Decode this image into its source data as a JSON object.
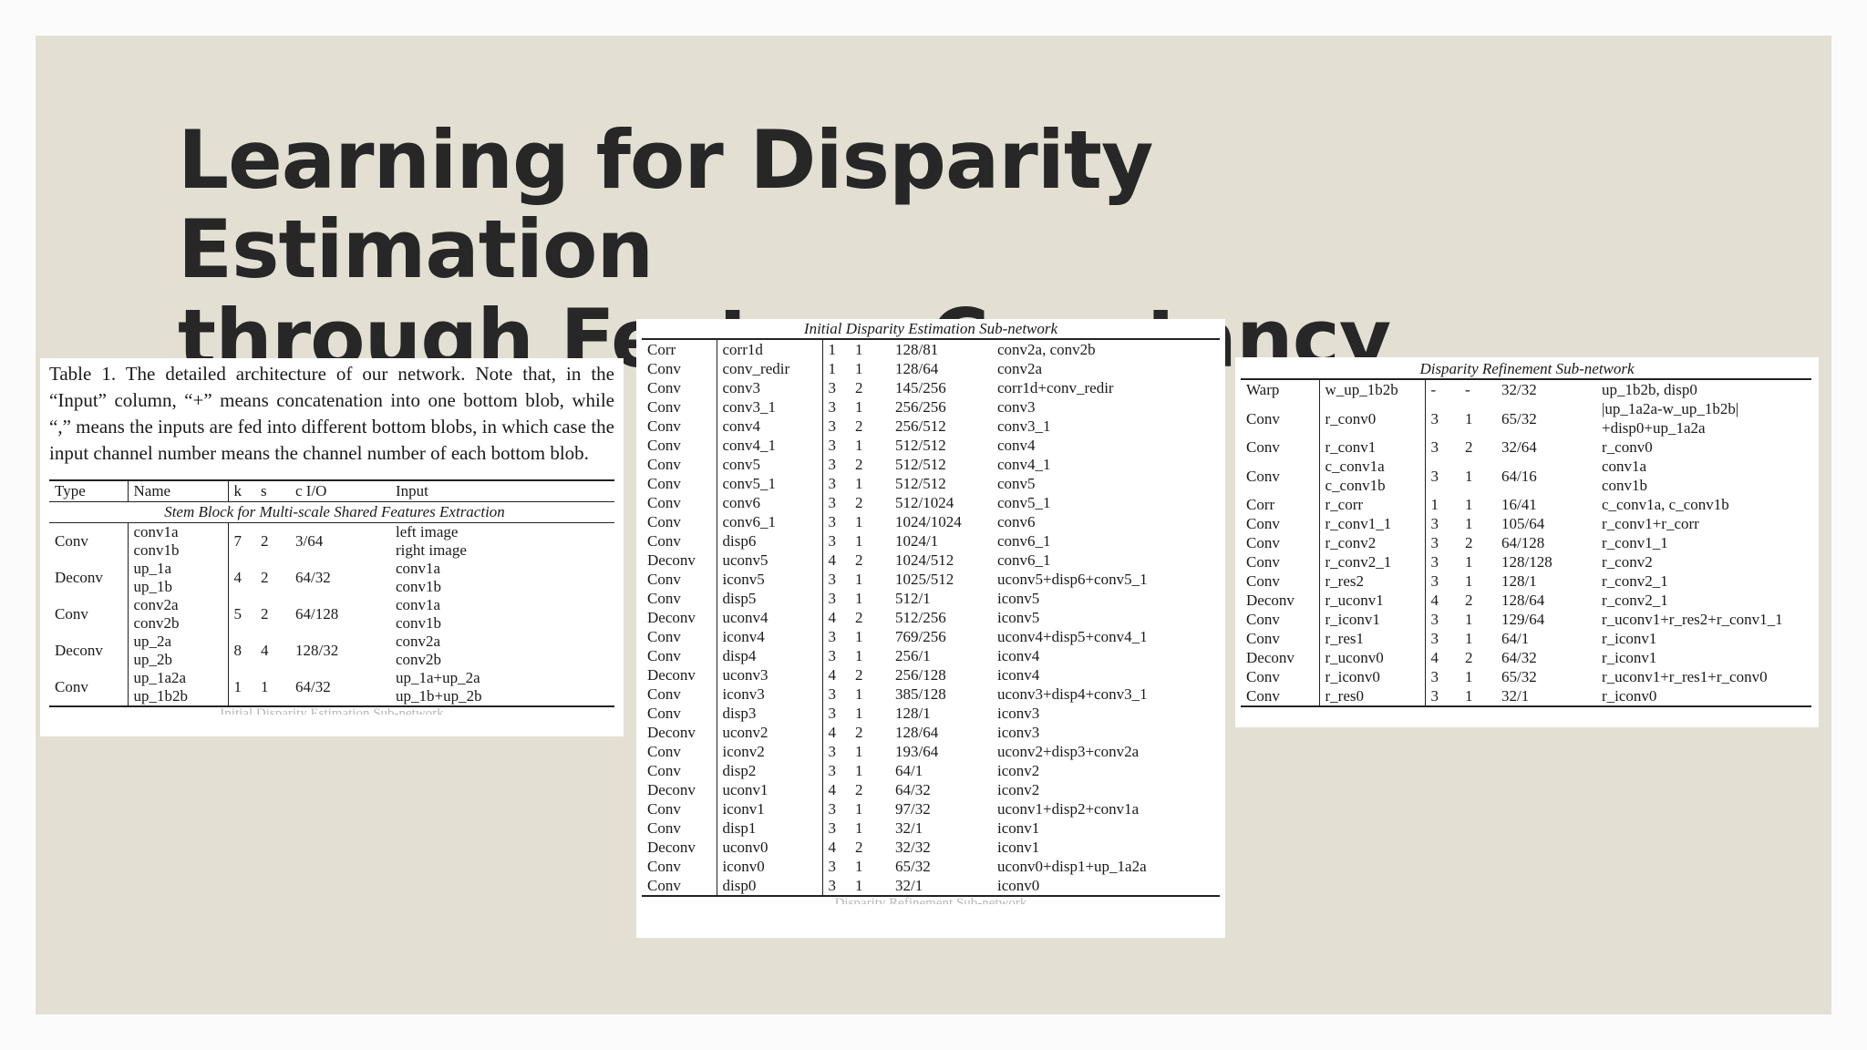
{
  "title": {
    "line1": "Learning for Disparity Estimation",
    "line2": "through Feature Constancy"
  },
  "stem": {
    "caption": "Table 1. The detailed architecture of our network. Note that, in the “Input” column, “+” means concatenation into one bottom blob, while “,” means the inputs are fed into different bottom blobs, in which case the input channel number means the channel number of each bottom blob.",
    "headers": [
      "Type",
      "Name",
      "k",
      "s",
      "c I/O",
      "Input"
    ],
    "section": "Stem Block for Multi-scale Shared Features Extraction",
    "rows": [
      {
        "type": "Conv",
        "name1": "conv1a",
        "name2": "conv1b",
        "k": "7",
        "s": "2",
        "cio": "3/64",
        "in1": "left image",
        "in2": "right image"
      },
      {
        "type": "Deconv",
        "name1": "up_1a",
        "name2": "up_1b",
        "k": "4",
        "s": "2",
        "cio": "64/32",
        "in1": "conv1a",
        "in2": "conv1b"
      },
      {
        "type": "Conv",
        "name1": "conv2a",
        "name2": "conv2b",
        "k": "5",
        "s": "2",
        "cio": "64/128",
        "in1": "conv1a",
        "in2": "conv1b"
      },
      {
        "type": "Deconv",
        "name1": "up_2a",
        "name2": "up_2b",
        "k": "8",
        "s": "4",
        "cio": "128/32",
        "in1": "conv2a",
        "in2": "conv2b"
      },
      {
        "type": "Conv",
        "name1": "up_1a2a",
        "name2": "up_1b2b",
        "k": "1",
        "s": "1",
        "cio": "64/32",
        "in1": "up_1a+up_2a",
        "in2": "up_1b+up_2b"
      }
    ],
    "cut_text": "Initial Disparity Estimation Sub-network"
  },
  "initial": {
    "section": "Initial Disparity Estimation Sub-network",
    "rows": [
      [
        "Corr",
        "corr1d",
        "1",
        "1",
        "128/81",
        "conv2a, conv2b"
      ],
      [
        "Conv",
        "conv_redir",
        "1",
        "1",
        "128/64",
        "conv2a"
      ],
      [
        "Conv",
        "conv3",
        "3",
        "2",
        "145/256",
        "corr1d+conv_redir"
      ],
      [
        "Conv",
        "conv3_1",
        "3",
        "1",
        "256/256",
        "conv3"
      ],
      [
        "Conv",
        "conv4",
        "3",
        "2",
        "256/512",
        "conv3_1"
      ],
      [
        "Conv",
        "conv4_1",
        "3",
        "1",
        "512/512",
        "conv4"
      ],
      [
        "Conv",
        "conv5",
        "3",
        "2",
        "512/512",
        "conv4_1"
      ],
      [
        "Conv",
        "conv5_1",
        "3",
        "1",
        "512/512",
        "conv5"
      ],
      [
        "Conv",
        "conv6",
        "3",
        "2",
        "512/1024",
        "conv5_1"
      ],
      [
        "Conv",
        "conv6_1",
        "3",
        "1",
        "1024/1024",
        "conv6"
      ],
      [
        "Conv",
        "disp6",
        "3",
        "1",
        "1024/1",
        "conv6_1"
      ],
      [
        "Deconv",
        "uconv5",
        "4",
        "2",
        "1024/512",
        "conv6_1"
      ],
      [
        "Conv",
        "iconv5",
        "3",
        "1",
        "1025/512",
        "uconv5+disp6+conv5_1"
      ],
      [
        "Conv",
        "disp5",
        "3",
        "1",
        "512/1",
        "iconv5"
      ],
      [
        "Deconv",
        "uconv4",
        "4",
        "2",
        "512/256",
        "iconv5"
      ],
      [
        "Conv",
        "iconv4",
        "3",
        "1",
        "769/256",
        "uconv4+disp5+conv4_1"
      ],
      [
        "Conv",
        "disp4",
        "3",
        "1",
        "256/1",
        "iconv4"
      ],
      [
        "Deconv",
        "uconv3",
        "4",
        "2",
        "256/128",
        "iconv4"
      ],
      [
        "Conv",
        "iconv3",
        "3",
        "1",
        "385/128",
        "uconv3+disp4+conv3_1"
      ],
      [
        "Conv",
        "disp3",
        "3",
        "1",
        "128/1",
        "iconv3"
      ],
      [
        "Deconv",
        "uconv2",
        "4",
        "2",
        "128/64",
        "iconv3"
      ],
      [
        "Conv",
        "iconv2",
        "3",
        "1",
        "193/64",
        "uconv2+disp3+conv2a"
      ],
      [
        "Conv",
        "disp2",
        "3",
        "1",
        "64/1",
        "iconv2"
      ],
      [
        "Deconv",
        "uconv1",
        "4",
        "2",
        "64/32",
        "iconv2"
      ],
      [
        "Conv",
        "iconv1",
        "3",
        "1",
        "97/32",
        "uconv1+disp2+conv1a"
      ],
      [
        "Conv",
        "disp1",
        "3",
        "1",
        "32/1",
        "iconv1"
      ],
      [
        "Deconv",
        "uconv0",
        "4",
        "2",
        "32/32",
        "iconv1"
      ],
      [
        "Conv",
        "iconv0",
        "3",
        "1",
        "65/32",
        "uconv0+disp1+up_1a2a"
      ],
      [
        "Conv",
        "disp0",
        "3",
        "1",
        "32/1",
        "iconv0"
      ]
    ],
    "cut_text": "Disparity Refinement Sub-network"
  },
  "refine": {
    "section": "Disparity Refinement Sub-network",
    "rows": [
      {
        "type": "Warp",
        "name": "w_up_1b2b",
        "k": "-",
        "s": "-",
        "cio": "32/32",
        "input": "up_1b2b, disp0"
      },
      {
        "type": "Conv",
        "name": "r_conv0",
        "k": "3",
        "s": "1",
        "cio": "65/32",
        "input": "|up_1a2a-w_up_1b2b|",
        "input2": "+disp0+up_1a2a"
      },
      {
        "type": "Conv",
        "name": "r_conv1",
        "k": "3",
        "s": "2",
        "cio": "32/64",
        "input": "r_conv0"
      },
      {
        "type": "Conv",
        "name": "c_conv1a",
        "name2": "c_conv1b",
        "k": "3",
        "s": "1",
        "cio": "64/16",
        "input": "conv1a",
        "input2": "conv1b"
      },
      {
        "type": "Corr",
        "name": "r_corr",
        "k": "1",
        "s": "1",
        "cio": "16/41",
        "input": "c_conv1a, c_conv1b"
      },
      {
        "type": "Conv",
        "name": "r_conv1_1",
        "k": "3",
        "s": "1",
        "cio": "105/64",
        "input": "r_conv1+r_corr"
      },
      {
        "type": "Conv",
        "name": "r_conv2",
        "k": "3",
        "s": "2",
        "cio": "64/128",
        "input": "r_conv1_1"
      },
      {
        "type": "Conv",
        "name": "r_conv2_1",
        "k": "3",
        "s": "1",
        "cio": "128/128",
        "input": "r_conv2"
      },
      {
        "type": "Conv",
        "name": "r_res2",
        "k": "3",
        "s": "1",
        "cio": "128/1",
        "input": "r_conv2_1"
      },
      {
        "type": "Deconv",
        "name": "r_uconv1",
        "k": "4",
        "s": "2",
        "cio": "128/64",
        "input": "r_conv2_1"
      },
      {
        "type": "Conv",
        "name": "r_iconv1",
        "k": "3",
        "s": "1",
        "cio": "129/64",
        "input": "r_uconv1+r_res2+r_conv1_1"
      },
      {
        "type": "Conv",
        "name": "r_res1",
        "k": "3",
        "s": "1",
        "cio": "64/1",
        "input": "r_iconv1"
      },
      {
        "type": "Deconv",
        "name": "r_uconv0",
        "k": "4",
        "s": "2",
        "cio": "64/32",
        "input": "r_iconv1"
      },
      {
        "type": "Conv",
        "name": "r_iconv0",
        "k": "3",
        "s": "1",
        "cio": "65/32",
        "input": "r_uconv1+r_res1+r_conv0"
      },
      {
        "type": "Conv",
        "name": "r_res0",
        "k": "3",
        "s": "1",
        "cio": "32/1",
        "input": "r_iconv0"
      }
    ]
  }
}
